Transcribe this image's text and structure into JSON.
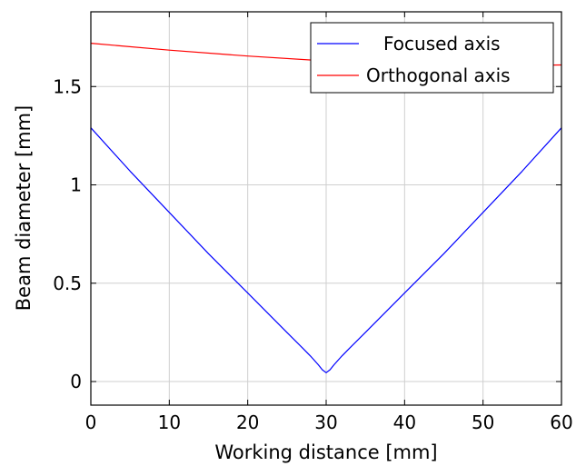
{
  "chart_data": {
    "type": "line",
    "xlabel": "Working distance [mm]",
    "ylabel": "Beam diameter [mm]",
    "xlim": [
      0,
      60
    ],
    "ylim": [
      -0.12,
      1.88
    ],
    "x_ticks": [
      0,
      10,
      20,
      30,
      40,
      50,
      60
    ],
    "y_ticks": [
      0,
      0.5,
      1,
      1.5
    ],
    "x_tick_labels": [
      "0",
      "10",
      "20",
      "30",
      "40",
      "50",
      "60"
    ],
    "y_tick_labels": [
      "0",
      "0.5",
      "1",
      "1.5"
    ],
    "grid": true,
    "legend_position": "top-right",
    "series": [
      {
        "name": "Focused axis",
        "color": "#0000ff",
        "x": [
          0,
          5,
          10,
          15,
          20,
          25,
          27,
          28,
          29,
          29.5,
          30,
          30.5,
          31,
          32,
          33,
          35,
          40,
          45,
          50,
          55,
          60
        ],
        "values": [
          1.29,
          1.07,
          0.86,
          0.65,
          0.45,
          0.25,
          0.17,
          0.13,
          0.085,
          0.06,
          0.045,
          0.06,
          0.085,
          0.13,
          0.17,
          0.25,
          0.45,
          0.65,
          0.86,
          1.07,
          1.29
        ]
      },
      {
        "name": "Orthogonal axis",
        "color": "#ff0000",
        "x": [
          0,
          10,
          20,
          30,
          40,
          50,
          60
        ],
        "values": [
          1.72,
          1.685,
          1.655,
          1.63,
          1.61,
          1.605,
          1.61
        ]
      }
    ]
  }
}
